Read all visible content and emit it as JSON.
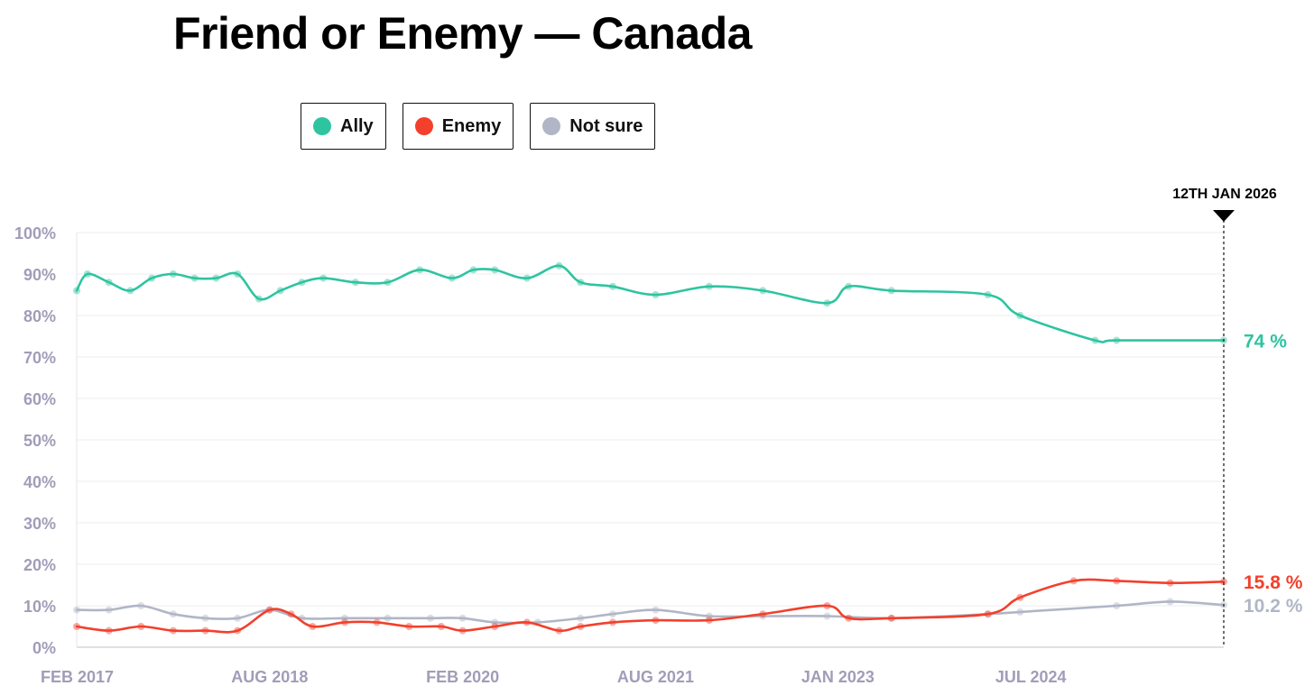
{
  "title": "Friend or Enemy — Canada",
  "legend": [
    {
      "label": "Ally",
      "color": "#2ec4a0"
    },
    {
      "label": "Enemy",
      "color": "#f2402c"
    },
    {
      "label": "Not sure",
      "color": "#b1b6c6"
    }
  ],
  "marker_label": "12TH JAN 2026",
  "end_labels": {
    "ally": "74 %",
    "enemy": "15.8 %",
    "not_sure": "10.2 %"
  },
  "chart_data": {
    "type": "line",
    "title": "Friend or Enemy — Canada",
    "xlabel": "",
    "ylabel": "",
    "x_tick_labels": [
      "FEB 2017",
      "AUG 2018",
      "FEB 2020",
      "AUG 2021",
      "JAN 2023",
      "JUL 2024"
    ],
    "x_tick_dates": [
      "2017-02",
      "2018-08",
      "2020-02",
      "2021-08",
      "2023-01",
      "2024-07"
    ],
    "y_tick_labels": [
      "0%",
      "10%",
      "20%",
      "30%",
      "40%",
      "50%",
      "60%",
      "70%",
      "80%",
      "90%",
      "100%"
    ],
    "xlim": [
      "2017-02",
      "2026-01"
    ],
    "ylim": [
      0,
      100
    ],
    "grid": true,
    "legend_position": "top",
    "series": [
      {
        "name": "Ally",
        "color": "#2ec4a0",
        "x": [
          "2017-02",
          "2017-03",
          "2017-05",
          "2017-07",
          "2017-09",
          "2017-11",
          "2018-01",
          "2018-03",
          "2018-05",
          "2018-07",
          "2018-09",
          "2018-11",
          "2019-01",
          "2019-04",
          "2019-07",
          "2019-10",
          "2020-01",
          "2020-03",
          "2020-05",
          "2020-08",
          "2020-11",
          "2021-01",
          "2021-04",
          "2021-08",
          "2022-01",
          "2022-06",
          "2022-12",
          "2023-02",
          "2023-06",
          "2024-03",
          "2024-06",
          "2025-01",
          "2025-03",
          "2026-01"
        ],
        "values": [
          86,
          90,
          88,
          86,
          89,
          90,
          89,
          89,
          90,
          84,
          86,
          88,
          89,
          88,
          88,
          91,
          89,
          91,
          91,
          89,
          92,
          88,
          87,
          85,
          87,
          86,
          83,
          87,
          86,
          85,
          80,
          74,
          74,
          74
        ]
      },
      {
        "name": "Enemy",
        "color": "#f2402c",
        "x": [
          "2017-02",
          "2017-05",
          "2017-08",
          "2017-11",
          "2018-02",
          "2018-05",
          "2018-08",
          "2018-10",
          "2018-12",
          "2019-03",
          "2019-06",
          "2019-09",
          "2019-12",
          "2020-02",
          "2020-05",
          "2020-08",
          "2020-11",
          "2021-01",
          "2021-04",
          "2021-08",
          "2022-01",
          "2022-06",
          "2022-12",
          "2023-02",
          "2023-06",
          "2024-03",
          "2024-06",
          "2024-11",
          "2025-03",
          "2025-08",
          "2026-01"
        ],
        "values": [
          5,
          4,
          5,
          4,
          4,
          4,
          9,
          8,
          5,
          6,
          6,
          5,
          5,
          4,
          5,
          6,
          4,
          5,
          6,
          6.5,
          6.5,
          8,
          10,
          7,
          7,
          8,
          12,
          16,
          16,
          15.5,
          15.8
        ]
      },
      {
        "name": "Not sure",
        "color": "#b1b6c6",
        "x": [
          "2017-02",
          "2017-05",
          "2017-08",
          "2017-11",
          "2018-02",
          "2018-05",
          "2018-08",
          "2018-11",
          "2019-03",
          "2019-07",
          "2019-11",
          "2020-02",
          "2020-05",
          "2020-09",
          "2021-01",
          "2021-04",
          "2021-08",
          "2022-01",
          "2022-06",
          "2022-12",
          "2023-06",
          "2024-03",
          "2024-06",
          "2025-03",
          "2025-08",
          "2026-01"
        ],
        "values": [
          9,
          9,
          10,
          8,
          7,
          7,
          9,
          7,
          7,
          7,
          7,
          7,
          6,
          6,
          7,
          8,
          9,
          7.5,
          7.5,
          7.5,
          7,
          8,
          8.5,
          10,
          11,
          10.2
        ]
      }
    ]
  }
}
